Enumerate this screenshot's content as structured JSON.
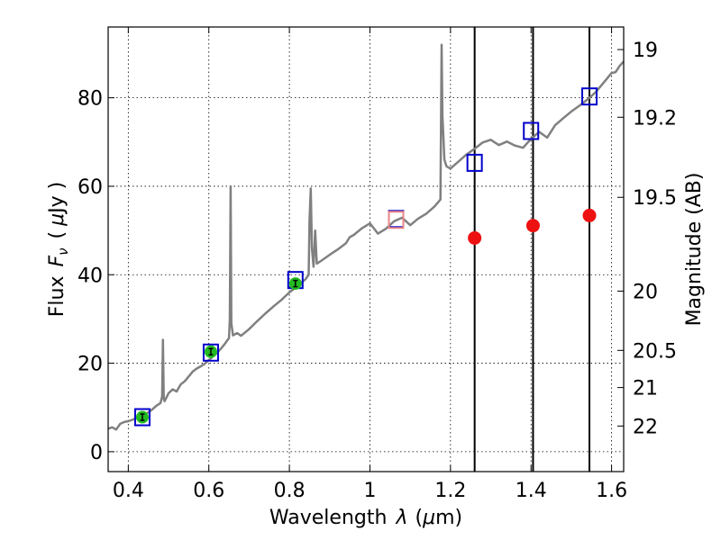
{
  "chart_data": {
    "type": "line",
    "title": "",
    "xlabel": "Wavelength",
    "xlabel_symbol": "λ",
    "xlabel_unit_open": "(",
    "xlabel_unit_mu": "μ",
    "xlabel_unit_rest": "m)",
    "ylabel_left": "Flux",
    "ylabel_left_symbol": "F",
    "ylabel_left_symbol_sub": "ν",
    "ylabel_left_unit_open": "(",
    "ylabel_left_unit_mu": "μ",
    "ylabel_left_unit_rest": "Jy )",
    "ylabel_right": "Magnitude (AB)",
    "xlim": [
      0.35,
      1.63
    ],
    "ylim": [
      -4.5,
      96
    ],
    "grid": true,
    "x_ticks": [
      {
        "value": 0.4,
        "label": "0.4"
      },
      {
        "value": 0.6,
        "label": "0.6"
      },
      {
        "value": 0.8,
        "label": "0.8"
      },
      {
        "value": 1.0,
        "label": "1"
      },
      {
        "value": 1.2,
        "label": "1.2"
      },
      {
        "value": 1.4,
        "label": "1.4"
      },
      {
        "value": 1.6,
        "label": "1.6"
      }
    ],
    "y_ticks": [
      {
        "value": 0,
        "label": "0"
      },
      {
        "value": 20,
        "label": "20"
      },
      {
        "value": 40,
        "label": "40"
      },
      {
        "value": 60,
        "label": "60"
      },
      {
        "value": 80,
        "label": "80"
      }
    ],
    "right_ticks": [
      {
        "flux": 90.9,
        "label": "19"
      },
      {
        "flux": 75.6,
        "label": "19.2"
      },
      {
        "flux": 57.5,
        "label": "19.5"
      },
      {
        "flux": 36.3,
        "label": "20"
      },
      {
        "flux": 22.9,
        "label": "20.5"
      },
      {
        "flux": 14.5,
        "label": "21"
      },
      {
        "flux": 5.8,
        "label": "22"
      }
    ],
    "vertical_lines": [
      1.26,
      1.405,
      1.545
    ],
    "series": [
      {
        "name": "spectrum",
        "color": "#808080",
        "points": [
          [
            0.35,
            5.2
          ],
          [
            0.36,
            5.5
          ],
          [
            0.37,
            5.0
          ],
          [
            0.38,
            6.3
          ],
          [
            0.39,
            6.7
          ],
          [
            0.4,
            6.9
          ],
          [
            0.41,
            7.2
          ],
          [
            0.42,
            7.6
          ],
          [
            0.43,
            7.9
          ],
          [
            0.44,
            8.3
          ],
          [
            0.45,
            8.9
          ],
          [
            0.46,
            9.6
          ],
          [
            0.47,
            10.4
          ],
          [
            0.48,
            11.0
          ],
          [
            0.484,
            12.5
          ],
          [
            0.486,
            25.3
          ],
          [
            0.488,
            12.0
          ],
          [
            0.49,
            11.4
          ],
          [
            0.5,
            13.2
          ],
          [
            0.51,
            14.1
          ],
          [
            0.52,
            13.6
          ],
          [
            0.53,
            15.2
          ],
          [
            0.54,
            15.9
          ],
          [
            0.55,
            17.0
          ],
          [
            0.56,
            18.1
          ],
          [
            0.57,
            18.8
          ],
          [
            0.58,
            19.3
          ],
          [
            0.59,
            19.9
          ],
          [
            0.6,
            20.7
          ],
          [
            0.61,
            21.5
          ],
          [
            0.62,
            22.3
          ],
          [
            0.63,
            23.3
          ],
          [
            0.64,
            24.4
          ],
          [
            0.65,
            25.7
          ],
          [
            0.652,
            30.0
          ],
          [
            0.654,
            60.0
          ],
          [
            0.656,
            29.0
          ],
          [
            0.66,
            26.3
          ],
          [
            0.67,
            26.8
          ],
          [
            0.68,
            26.2
          ],
          [
            0.7,
            27.7
          ],
          [
            0.72,
            29.5
          ],
          [
            0.74,
            31.2
          ],
          [
            0.76,
            32.8
          ],
          [
            0.78,
            34.3
          ],
          [
            0.8,
            36.0
          ],
          [
            0.82,
            37.4
          ],
          [
            0.84,
            39.0
          ],
          [
            0.848,
            40.0
          ],
          [
            0.85,
            52.0
          ],
          [
            0.853,
            59.5
          ],
          [
            0.856,
            46.0
          ],
          [
            0.86,
            41.8
          ],
          [
            0.864,
            50.0
          ],
          [
            0.868,
            42.5
          ],
          [
            0.88,
            43.2
          ],
          [
            0.9,
            44.5
          ],
          [
            0.92,
            45.7
          ],
          [
            0.94,
            47.1
          ],
          [
            0.95,
            48.5
          ],
          [
            0.96,
            49.0
          ],
          [
            0.98,
            50.5
          ],
          [
            1.0,
            51.6
          ],
          [
            1.02,
            49.3
          ],
          [
            1.04,
            50.4
          ],
          [
            1.06,
            52.1
          ],
          [
            1.08,
            52.9
          ],
          [
            1.1,
            51.2
          ],
          [
            1.12,
            52.7
          ],
          [
            1.14,
            53.8
          ],
          [
            1.16,
            55.4
          ],
          [
            1.175,
            57.0
          ],
          [
            1.178,
            92.0
          ],
          [
            1.18,
            76.0
          ],
          [
            1.185,
            66.0
          ],
          [
            1.19,
            64.5
          ],
          [
            1.2,
            64.0
          ],
          [
            1.22,
            65.6
          ],
          [
            1.24,
            67.2
          ],
          [
            1.26,
            68.5
          ],
          [
            1.28,
            69.9
          ],
          [
            1.3,
            70.5
          ],
          [
            1.32,
            69.3
          ],
          [
            1.34,
            70.1
          ],
          [
            1.36,
            69.2
          ],
          [
            1.38,
            68.7
          ],
          [
            1.4,
            70.7
          ],
          [
            1.42,
            72.3
          ],
          [
            1.44,
            71.0
          ],
          [
            1.46,
            73.8
          ],
          [
            1.48,
            75.4
          ],
          [
            1.5,
            76.9
          ],
          [
            1.52,
            78.2
          ],
          [
            1.54,
            79.6
          ],
          [
            1.56,
            81.2
          ],
          [
            1.58,
            83.4
          ],
          [
            1.6,
            85.6
          ],
          [
            1.61,
            85.8
          ],
          [
            1.62,
            87.2
          ],
          [
            1.63,
            88.2
          ]
        ]
      },
      {
        "name": "model-photometry",
        "color": "#0000cc",
        "marker": "open-square",
        "points": [
          [
            0.435,
            7.8
          ],
          [
            0.605,
            22.4
          ],
          [
            0.815,
            38.8
          ],
          [
            1.065,
            52.6
          ],
          [
            1.26,
            65.3
          ],
          [
            1.4,
            72.5
          ],
          [
            1.545,
            80.3
          ]
        ]
      },
      {
        "name": "observed-photometry",
        "color": "#22bb22",
        "marker": "filled-circle",
        "points": [
          [
            0.435,
            7.8
          ],
          [
            0.605,
            22.6
          ],
          [
            0.815,
            38.0
          ]
        ]
      },
      {
        "name": "observed-nir",
        "color": "#ee1111",
        "marker": "filled-circle",
        "points": [
          [
            1.26,
            48.3
          ],
          [
            1.405,
            51.1
          ],
          [
            1.545,
            53.4
          ]
        ]
      },
      {
        "name": "pink-square",
        "color": "#ee8888",
        "marker": "open-square",
        "points": [
          [
            1.065,
            52.4
          ]
        ]
      }
    ]
  }
}
